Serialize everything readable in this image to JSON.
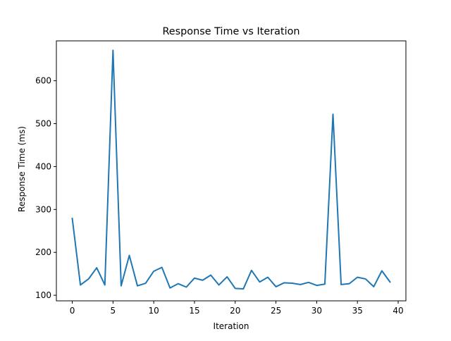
{
  "chart_data": {
    "type": "line",
    "title": "Response Time vs Iteration",
    "xlabel": "Iteration",
    "ylabel": "Response Time (ms)",
    "xlim": [
      -1.95,
      40.95
    ],
    "ylim": [
      87,
      693
    ],
    "xticks": [
      0,
      5,
      10,
      15,
      20,
      25,
      30,
      35,
      40
    ],
    "yticks": [
      100,
      200,
      300,
      400,
      500,
      600
    ],
    "grid": false,
    "legend": "none",
    "series": [
      {
        "color": "#1f77b4",
        "x": [
          0,
          1,
          2,
          3,
          4,
          5,
          6,
          7,
          8,
          9,
          10,
          11,
          12,
          13,
          14,
          15,
          16,
          17,
          18,
          19,
          20,
          21,
          22,
          23,
          24,
          25,
          26,
          27,
          28,
          29,
          30,
          31,
          32,
          33,
          34,
          35,
          36,
          37,
          38,
          39
        ],
        "y": [
          279,
          124,
          138,
          164,
          124,
          671,
          122,
          193,
          122,
          128,
          156,
          165,
          117,
          127,
          119,
          140,
          135,
          147,
          124,
          143,
          116,
          115,
          158,
          131,
          142,
          120,
          129,
          128,
          125,
          130,
          123,
          126,
          522,
          125,
          127,
          142,
          138,
          120,
          157,
          131
        ]
      }
    ]
  }
}
